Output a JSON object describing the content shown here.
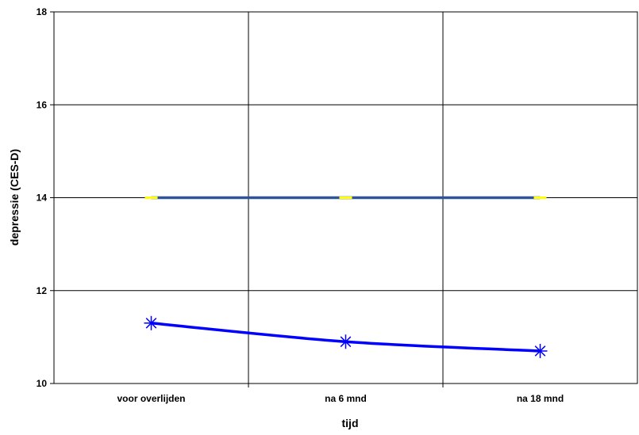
{
  "chart_data": {
    "type": "line",
    "categories": [
      "voor overlijden",
      "na 6 mnd",
      "na 18 mnd"
    ],
    "ylim": [
      10,
      18
    ],
    "yticks": [
      10,
      12,
      14,
      16,
      18
    ],
    "xlabel": "tijd",
    "ylabel": "depressie (CES-D)",
    "grid": true,
    "legend": "none",
    "series": [
      {
        "values": [
          11.3,
          10.9,
          10.7
        ],
        "color": "#0000ff",
        "marker": "asterisk"
      },
      {
        "values": [
          14,
          14,
          14
        ],
        "color": "#2f5597",
        "marker": "yellow-dash"
      }
    ]
  }
}
